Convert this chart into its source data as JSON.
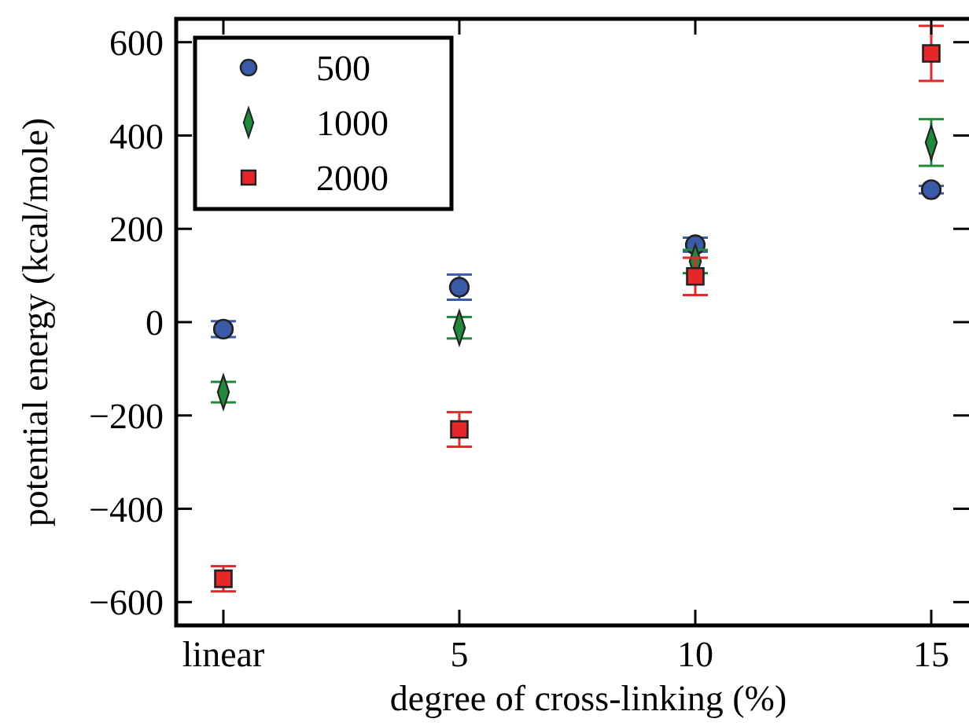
{
  "chart_data": {
    "type": "scatter",
    "xlabel": "degree of cross-linking (%)",
    "ylabel": "potential energy (kcal/mole)",
    "categories": [
      "linear",
      "5",
      "10",
      "15"
    ],
    "ylim": [
      -650,
      650
    ],
    "yticks": [
      -600,
      -400,
      -200,
      0,
      200,
      400,
      600
    ],
    "legend": "top left",
    "grid": false,
    "series": [
      {
        "name": "500",
        "color": "#3a5ba8",
        "marker": "circle",
        "values": [
          -15,
          75,
          166,
          284
        ],
        "errors": [
          17,
          27,
          15,
          8
        ]
      },
      {
        "name": "1000",
        "color": "#1e8a3a",
        "marker": "diamond",
        "values": [
          -150,
          -12,
          130,
          385
        ],
        "errors": [
          22,
          23,
          25,
          50
        ]
      },
      {
        "name": "2000",
        "color": "#e8262a",
        "marker": "square",
        "values": [
          -550,
          -230,
          98,
          576
        ],
        "errors": [
          27,
          37,
          40,
          59
        ]
      }
    ]
  }
}
